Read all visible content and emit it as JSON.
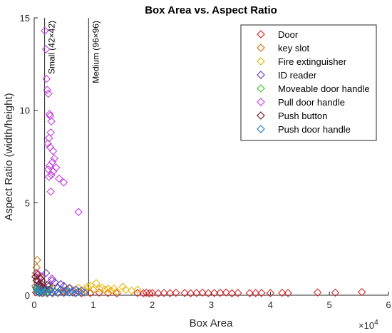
{
  "chart_data": {
    "type": "scatter",
    "title": "Box Area vs. Aspect Ratio",
    "xlabel": "Box Area",
    "ylabel": "Aspect Ratio (width/height)",
    "x_exponent": "×10",
    "x_exponent_power": "4",
    "xlim": [
      0,
      60000
    ],
    "ylim": [
      0,
      15
    ],
    "x_ticks": [
      0,
      10000,
      20000,
      30000,
      40000,
      50000,
      60000
    ],
    "x_tick_labels": [
      "0",
      "1",
      "2",
      "3",
      "4",
      "5",
      "6"
    ],
    "y_ticks": [
      0,
      5,
      10,
      15
    ],
    "y_tick_labels": [
      "0",
      "5",
      "10",
      "15"
    ],
    "grid": false,
    "legend_position": "top-right",
    "marker": "diamond",
    "colors": {
      "Door": "#d62728",
      "key slot": "#c07a1a",
      "Fire extinguisher": "#e8b60a",
      "ID reader": "#6a3fb5",
      "Moveable door handle": "#4cc729",
      "Pull door handle": "#c43fe0",
      "Push button": "#7a1f2b",
      "Push door handle": "#2e78c7"
    },
    "reference_lines": [
      {
        "x": 1764,
        "label": "Small (42×42)"
      },
      {
        "x": 9216,
        "label": "Medium (96×96)"
      }
    ],
    "series": [
      {
        "name": "Door",
        "points": [
          [
            300,
            0.15
          ],
          [
            600,
            0.2
          ],
          [
            900,
            0.12
          ],
          [
            1500,
            0.18
          ],
          [
            2200,
            0.1
          ],
          [
            3000,
            0.15
          ],
          [
            4000,
            0.12
          ],
          [
            5000,
            0.18
          ],
          [
            6500,
            0.15
          ],
          [
            8000,
            0.1
          ],
          [
            9500,
            0.12
          ],
          [
            11000,
            0.14
          ],
          [
            12500,
            0.12
          ],
          [
            14000,
            0.1
          ],
          [
            17500,
            0.12
          ],
          [
            18500,
            0.1
          ],
          [
            19000,
            0.14
          ],
          [
            19500,
            0.1
          ],
          [
            20000,
            0.12
          ],
          [
            21000,
            0.1
          ],
          [
            22000,
            0.12
          ],
          [
            23000,
            0.11
          ],
          [
            24000,
            0.13
          ],
          [
            25500,
            0.12
          ],
          [
            26500,
            0.1
          ],
          [
            27500,
            0.12
          ],
          [
            28500,
            0.14
          ],
          [
            29500,
            0.11
          ],
          [
            30500,
            0.12
          ],
          [
            31500,
            0.13
          ],
          [
            32500,
            0.15
          ],
          [
            33500,
            0.1
          ],
          [
            34500,
            0.12
          ],
          [
            36500,
            0.11
          ],
          [
            37500,
            0.12
          ],
          [
            38500,
            0.12
          ],
          [
            40000,
            0.12
          ],
          [
            42000,
            0.13
          ],
          [
            43000,
            0.12
          ],
          [
            48000,
            0.15
          ],
          [
            51000,
            0.14
          ],
          [
            55500,
            0.17
          ]
        ]
      },
      {
        "name": "key slot",
        "points": [
          [
            200,
            0.5
          ],
          [
            300,
            1.2
          ],
          [
            400,
            1.5
          ],
          [
            500,
            1.9
          ],
          [
            600,
            0.8
          ],
          [
            700,
            0.4
          ],
          [
            800,
            0.3
          ],
          [
            900,
            1.0
          ],
          [
            1200,
            0.6
          ],
          [
            1500,
            0.35
          ],
          [
            1800,
            0.25
          ],
          [
            2500,
            0.3
          ],
          [
            3500,
            0.2
          ],
          [
            5000,
            0.25
          ],
          [
            7500,
            0.2
          ]
        ]
      },
      {
        "name": "Fire extinguisher",
        "points": [
          [
            3000,
            0.4
          ],
          [
            4500,
            0.3
          ],
          [
            6000,
            0.35
          ],
          [
            7500,
            0.4
          ],
          [
            8500,
            0.3
          ],
          [
            9000,
            0.45
          ],
          [
            9500,
            0.5
          ],
          [
            10000,
            0.3
          ],
          [
            10500,
            0.65
          ],
          [
            11000,
            0.35
          ],
          [
            11500,
            0.4
          ],
          [
            12000,
            0.3
          ],
          [
            12500,
            0.35
          ],
          [
            13000,
            0.25
          ],
          [
            13500,
            0.35
          ],
          [
            14000,
            0.2
          ],
          [
            15000,
            0.45
          ],
          [
            15500,
            0.3
          ],
          [
            16500,
            0.25
          ],
          [
            17500,
            0.3
          ]
        ]
      },
      {
        "name": "ID reader",
        "points": [
          [
            500,
            0.8
          ],
          [
            800,
            0.5
          ],
          [
            1000,
            0.4
          ],
          [
            1300,
            0.6
          ],
          [
            1600,
            0.3
          ],
          [
            2000,
            1.2
          ],
          [
            2500,
            0.5
          ],
          [
            3000,
            0.8
          ],
          [
            3500,
            0.7
          ],
          [
            4000,
            0.4
          ],
          [
            4500,
            0.6
          ],
          [
            5000,
            0.5
          ],
          [
            5500,
            0.3
          ],
          [
            6000,
            0.4
          ],
          [
            7000,
            0.3
          ],
          [
            8000,
            0.25
          ]
        ]
      },
      {
        "name": "Moveable door handle",
        "points": [
          [
            400,
            0.3
          ],
          [
            700,
            0.2
          ],
          [
            1000,
            0.35
          ],
          [
            1300,
            0.25
          ],
          [
            1700,
            0.15
          ],
          [
            2200,
            0.2
          ],
          [
            2800,
            0.3
          ]
        ]
      },
      {
        "name": "Pull door handle",
        "points": [
          [
            1800,
            14.3
          ],
          [
            2000,
            13.3
          ],
          [
            2100,
            11.7
          ],
          [
            2200,
            11.1
          ],
          [
            2400,
            10.9
          ],
          [
            2600,
            9.8
          ],
          [
            2700,
            9.7
          ],
          [
            2900,
            9.4
          ],
          [
            2800,
            8.8
          ],
          [
            2500,
            8.5
          ],
          [
            2300,
            8.2
          ],
          [
            2700,
            8.0
          ],
          [
            3200,
            7.8
          ],
          [
            3400,
            7.4
          ],
          [
            3100,
            7.2
          ],
          [
            2600,
            7.0
          ],
          [
            2400,
            6.8
          ],
          [
            2900,
            6.5
          ],
          [
            3700,
            6.9
          ],
          [
            3200,
            6.7
          ],
          [
            2500,
            6.4
          ],
          [
            4200,
            6.3
          ],
          [
            5000,
            6.1
          ],
          [
            2800,
            5.6
          ],
          [
            7500,
            4.5
          ],
          [
            500,
            1.2
          ],
          [
            1200,
            1.0
          ],
          [
            3000,
            0.9
          ]
        ]
      },
      {
        "name": "Push button",
        "points": [
          [
            200,
            1.0
          ],
          [
            400,
            0.8
          ],
          [
            600,
            1.1
          ],
          [
            800,
            0.6
          ],
          [
            1000,
            0.9
          ],
          [
            1200,
            0.5
          ],
          [
            1500,
            0.7
          ],
          [
            1800,
            0.4
          ],
          [
            2200,
            0.55
          ],
          [
            2600,
            0.3
          ]
        ]
      },
      {
        "name": "Push door handle",
        "points": [
          [
            300,
            0.4
          ],
          [
            500,
            0.2
          ],
          [
            700,
            0.3
          ],
          [
            900,
            0.15
          ],
          [
            1100,
            0.25
          ],
          [
            1400,
            0.1
          ],
          [
            1700,
            0.2
          ],
          [
            2000,
            0.3
          ],
          [
            2300,
            0.15
          ],
          [
            2700,
            0.25
          ],
          [
            3100,
            0.1
          ],
          [
            3500,
            0.2
          ],
          [
            4000,
            0.15
          ],
          [
            4500,
            0.3
          ],
          [
            5000,
            0.12
          ],
          [
            5500,
            0.2
          ],
          [
            6000,
            0.15
          ],
          [
            6500,
            0.25
          ],
          [
            7000,
            0.1
          ],
          [
            7500,
            0.2
          ],
          [
            8500,
            0.15
          ]
        ]
      }
    ]
  }
}
